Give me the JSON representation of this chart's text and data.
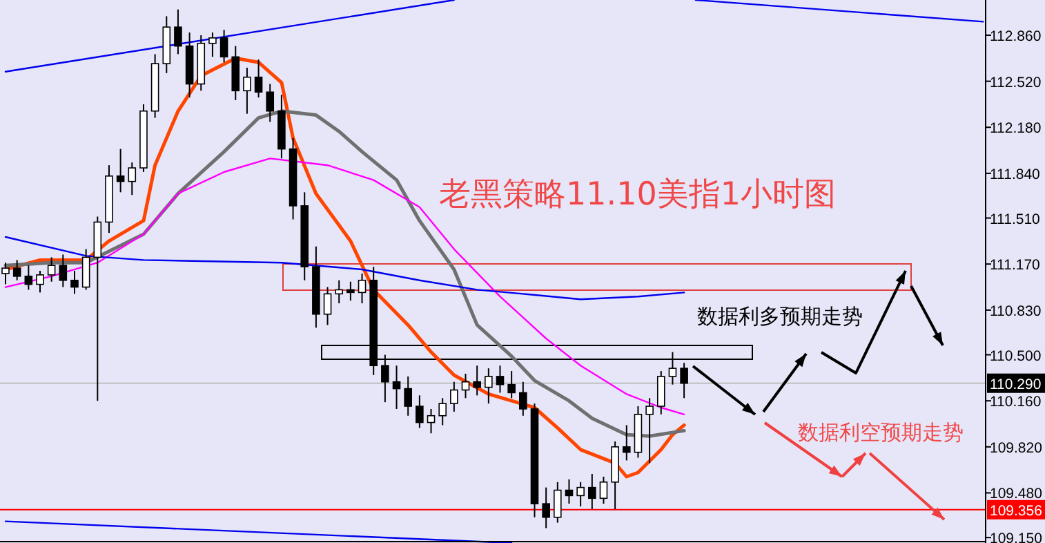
{
  "chart_data": {
    "type": "candlestick",
    "title": "老黑策略11.10美指1小时图",
    "annotations": [
      "数据利多预期走势",
      "数据利空预期走势"
    ],
    "categories": [
      null,
      null,
      null,
      null,
      null,
      null,
      null,
      null,
      null,
      null,
      null,
      null,
      null,
      null,
      null,
      null,
      null,
      null,
      null,
      null,
      null,
      null,
      null,
      null,
      null,
      null,
      null,
      null,
      null,
      null,
      null,
      null,
      null,
      null,
      null,
      null,
      null,
      null,
      null,
      null,
      null,
      null,
      null,
      null,
      null,
      null,
      null,
      null,
      null,
      null,
      null,
      null,
      null,
      null,
      null,
      null,
      null,
      null,
      null,
      null,
      null,
      null,
      null,
      null,
      null,
      null,
      null,
      null,
      null,
      null,
      null,
      null,
      null,
      null,
      null,
      null,
      null,
      null,
      null,
      null,
      null,
      null,
      null,
      null,
      null,
      null
    ],
    "ohlc": [
      [
        111.1,
        111.18,
        111.02,
        111.14
      ],
      [
        111.14,
        111.2,
        111.05,
        111.08
      ],
      [
        111.08,
        111.16,
        110.98,
        111.02
      ],
      [
        111.02,
        111.12,
        110.96,
        111.09
      ],
      [
        111.09,
        111.22,
        111.04,
        111.16
      ],
      [
        111.16,
        111.24,
        111.0,
        111.05
      ],
      [
        111.05,
        111.12,
        110.95,
        111.0
      ],
      [
        111.0,
        111.28,
        110.98,
        111.22
      ],
      [
        111.22,
        111.52,
        110.16,
        111.48
      ],
      [
        111.48,
        111.9,
        111.4,
        111.82
      ],
      [
        111.82,
        112.02,
        111.7,
        111.78
      ],
      [
        111.78,
        111.92,
        111.68,
        111.88
      ],
      [
        111.88,
        112.35,
        111.85,
        112.3
      ],
      [
        112.3,
        112.72,
        112.25,
        112.65
      ],
      [
        112.65,
        113.0,
        112.58,
        112.92
      ],
      [
        112.92,
        113.05,
        112.72,
        112.78
      ],
      [
        112.78,
        112.88,
        112.4,
        112.5
      ],
      [
        112.5,
        112.86,
        112.45,
        112.8
      ],
      [
        112.8,
        112.88,
        112.7,
        112.84
      ],
      [
        112.84,
        112.9,
        112.66,
        112.7
      ],
      [
        112.7,
        112.78,
        112.38,
        112.45
      ],
      [
        112.45,
        112.62,
        112.28,
        112.55
      ],
      [
        112.55,
        112.68,
        112.4,
        112.44
      ],
      [
        112.44,
        112.5,
        112.22,
        112.3
      ],
      [
        112.3,
        112.42,
        111.95,
        112.02
      ],
      [
        112.02,
        112.1,
        111.5,
        111.6
      ],
      [
        111.6,
        111.7,
        111.05,
        111.15
      ],
      [
        111.15,
        111.3,
        110.7,
        110.8
      ],
      [
        110.8,
        111.0,
        110.72,
        110.95
      ],
      [
        110.95,
        111.05,
        110.88,
        110.98
      ],
      [
        110.98,
        111.04,
        110.9,
        110.96
      ],
      [
        110.96,
        111.1,
        110.88,
        111.05
      ],
      [
        111.05,
        111.15,
        110.35,
        110.42
      ],
      [
        110.42,
        110.5,
        110.15,
        110.3
      ],
      [
        110.3,
        110.42,
        110.1,
        110.25
      ],
      [
        110.25,
        110.34,
        110.05,
        110.12
      ],
      [
        110.12,
        110.2,
        109.96,
        110.0
      ],
      [
        110.0,
        110.1,
        109.92,
        110.05
      ],
      [
        110.05,
        110.18,
        109.98,
        110.14
      ],
      [
        110.14,
        110.3,
        110.08,
        110.24
      ],
      [
        110.24,
        110.36,
        110.18,
        110.3
      ],
      [
        110.3,
        110.42,
        110.2,
        110.26
      ],
      [
        110.26,
        110.4,
        110.14,
        110.34
      ],
      [
        110.34,
        110.42,
        110.22,
        110.28
      ],
      [
        110.28,
        110.38,
        110.18,
        110.22
      ],
      [
        110.22,
        110.3,
        110.05,
        110.1
      ],
      [
        110.1,
        110.14,
        109.3,
        109.4
      ],
      [
        109.4,
        109.52,
        109.22,
        109.3
      ],
      [
        109.3,
        109.56,
        109.26,
        109.5
      ],
      [
        109.5,
        109.58,
        109.4,
        109.46
      ],
      [
        109.46,
        109.56,
        109.38,
        109.52
      ],
      [
        109.52,
        109.62,
        109.36,
        109.44
      ],
      [
        109.44,
        109.6,
        109.4,
        109.56
      ],
      [
        109.56,
        109.86,
        109.36,
        109.82
      ],
      [
        109.82,
        109.98,
        109.72,
        109.78
      ],
      [
        109.78,
        110.12,
        109.74,
        110.06
      ],
      [
        110.06,
        110.18,
        109.7,
        110.12
      ],
      [
        110.12,
        110.38,
        110.06,
        110.34
      ],
      [
        110.34,
        110.52,
        110.28,
        110.4
      ],
      [
        110.4,
        110.44,
        110.18,
        110.29
      ],
      null,
      null,
      null,
      null,
      null,
      null,
      null,
      null,
      null,
      null,
      null,
      null,
      null,
      null,
      null,
      null,
      null,
      null,
      null,
      null,
      null,
      null,
      null,
      null,
      null,
      null
    ],
    "series": [
      {
        "type": "line",
        "color": "#ff4500",
        "values": [
          111.13,
          null,
          null,
          111.2,
          null,
          null,
          null,
          111.2,
          null,
          111.34,
          null,
          null,
          111.49,
          111.9,
          null,
          112.3,
          null,
          112.56,
          null,
          null,
          112.69,
          null,
          112.66,
          null,
          112.51,
          112.1,
          null,
          111.69,
          null,
          null,
          111.34,
          null,
          110.98,
          null,
          null,
          110.72,
          null,
          110.52,
          null,
          110.35,
          null,
          null,
          110.21,
          null,
          110.16,
          null,
          110.11,
          null,
          109.96,
          null,
          109.8,
          null,
          null,
          109.7,
          109.6,
          109.63,
          null,
          109.8,
          109.91,
          109.98,
          null,
          null,
          null,
          null,
          null,
          null,
          null,
          null,
          null,
          null,
          null,
          null,
          null,
          null,
          null,
          null,
          null,
          null,
          null,
          null,
          null,
          null,
          null,
          null,
          null,
          null
        ]
      },
      {
        "type": "line",
        "color": "#707070",
        "values": [
          111.16,
          null,
          null,
          null,
          111.18,
          null,
          null,
          111.18,
          null,
          null,
          null,
          null,
          111.39,
          null,
          null,
          111.69,
          null,
          null,
          null,
          112.0,
          null,
          null,
          112.25,
          null,
          112.3,
          null,
          null,
          112.27,
          null,
          112.15,
          null,
          112.0,
          null,
          null,
          111.79,
          null,
          111.49,
          null,
          null,
          111.13,
          null,
          110.72,
          null,
          null,
          110.49,
          null,
          110.31,
          null,
          null,
          110.16,
          null,
          110.03,
          null,
          null,
          109.91,
          null,
          109.9,
          null,
          null,
          109.94,
          null,
          null,
          null,
          null,
          null,
          null,
          null,
          null,
          null,
          null,
          null,
          null,
          null,
          null,
          null,
          null,
          null,
          null,
          null,
          null,
          null,
          null,
          null,
          null,
          null,
          null
        ]
      },
      {
        "type": "line",
        "color": "#ff00ff",
        "values": [
          111.0,
          null,
          null,
          null,
          111.08,
          null,
          null,
          null,
          111.18,
          null,
          null,
          null,
          111.39,
          null,
          null,
          111.69,
          null,
          null,
          null,
          111.85,
          null,
          null,
          null,
          111.95,
          null,
          111.93,
          null,
          null,
          111.9,
          null,
          null,
          null,
          111.79,
          null,
          null,
          null,
          111.59,
          null,
          null,
          111.28,
          null,
          null,
          null,
          110.93,
          null,
          null,
          null,
          110.62,
          null,
          null,
          110.42,
          null,
          null,
          null,
          110.21,
          null,
          null,
          110.11,
          null,
          110.06,
          null,
          null,
          null,
          null,
          null,
          null,
          null,
          null,
          null,
          null,
          null,
          null,
          null,
          null,
          null,
          null,
          null,
          null,
          null,
          null,
          null,
          null,
          null,
          null,
          null,
          null
        ]
      },
      {
        "type": "line",
        "color": "#0000ee",
        "values": [
          111.37,
          null,
          null,
          null,
          null,
          null,
          null,
          111.23,
          null,
          null,
          null,
          null,
          111.2,
          null,
          null,
          null,
          null,
          null,
          null,
          null,
          null,
          null,
          null,
          null,
          111.18,
          null,
          null,
          null,
          null,
          null,
          null,
          111.13,
          null,
          null,
          null,
          null,
          111.05,
          null,
          null,
          null,
          null,
          110.98,
          null,
          null,
          null,
          110.95,
          null,
          null,
          null,
          null,
          110.91,
          null,
          null,
          null,
          null,
          110.93,
          null,
          null,
          null,
          110.96,
          null,
          null,
          null,
          null,
          null,
          null,
          null,
          null,
          null,
          null,
          null,
          null,
          null,
          null,
          null,
          null,
          null,
          null,
          null,
          null,
          null,
          null,
          null,
          null,
          null,
          null
        ]
      },
      {
        "type": "line",
        "color": "#0000ee",
        "values": [
          112.59,
          null,
          null,
          null,
          null,
          null,
          null,
          null,
          null,
          null,
          null,
          null,
          null,
          null,
          null,
          null,
          null,
          null,
          null,
          null,
          null,
          null,
          null,
          null,
          null,
          null,
          null,
          null,
          null,
          null,
          null,
          null,
          null,
          null,
          null,
          null,
          null,
          null,
          null,
          113.12,
          null,
          null,
          null,
          null,
          null,
          null,
          null,
          null,
          null,
          null,
          null,
          null,
          null,
          null,
          null,
          null,
          null,
          null,
          null,
          null,
          null,
          null,
          null,
          null,
          null,
          null,
          null,
          null,
          null,
          null,
          null,
          null,
          null,
          null,
          null,
          null,
          null,
          null,
          null,
          null,
          null,
          null,
          null,
          null,
          null,
          null
        ]
      },
      {
        "type": "line",
        "color": "#0000ee",
        "values": [
          null,
          null,
          null,
          null,
          null,
          null,
          null,
          null,
          null,
          null,
          null,
          null,
          null,
          null,
          null,
          null,
          null,
          null,
          null,
          null,
          null,
          null,
          null,
          null,
          null,
          null,
          null,
          null,
          null,
          null,
          null,
          null,
          null,
          null,
          null,
          null,
          null,
          null,
          null,
          null,
          null,
          null,
          null,
          null,
          null,
          null,
          null,
          null,
          null,
          null,
          null,
          null,
          null,
          null,
          null,
          null,
          null,
          null,
          null,
          null,
          113.12,
          null,
          null,
          null,
          null,
          null,
          null,
          null,
          null,
          null,
          null,
          null,
          null,
          null,
          null,
          null,
          null,
          null,
          null,
          null,
          null,
          null,
          null,
          null,
          null,
          112.96
        ]
      },
      {
        "type": "line",
        "color": "#0000ee",
        "values": [
          109.27,
          null,
          null,
          null,
          null,
          null,
          null,
          null,
          null,
          null,
          null,
          null,
          null,
          null,
          null,
          null,
          null,
          null,
          null,
          null,
          null,
          null,
          null,
          null,
          null,
          null,
          null,
          null,
          null,
          null,
          null,
          null,
          null,
          null,
          null,
          null,
          null,
          null,
          null,
          null,
          null,
          null,
          null,
          null,
          109.11,
          null,
          null,
          null,
          null,
          null,
          null,
          null,
          null,
          null,
          null,
          null,
          null,
          null,
          null,
          null,
          null,
          null,
          null,
          null,
          null,
          null,
          null,
          null,
          null,
          null,
          null,
          null,
          null,
          null,
          null,
          null,
          null,
          null,
          null,
          null,
          null,
          null,
          null,
          null,
          null,
          null
        ]
      }
    ],
    "ref_lines": [
      {
        "axis": "y",
        "value": 110.29,
        "label": "110.290",
        "color": "#c0c0c0"
      },
      {
        "axis": "y",
        "value": 109.356,
        "label": "109.356",
        "color": "#ff0000"
      }
    ],
    "ylim": [
      109.11,
      113.12
    ],
    "yticks": [
      {
        "value": 112.86,
        "label": "112.860"
      },
      {
        "value": 112.52,
        "label": "112.520"
      },
      {
        "value": 112.18,
        "label": "112.180"
      },
      {
        "value": 111.84,
        "label": "111.840"
      },
      {
        "value": 111.51,
        "label": "111.510"
      },
      {
        "value": 111.17,
        "label": "111.170"
      },
      {
        "value": 110.83,
        "label": "110.830"
      },
      {
        "value": 110.5,
        "label": "110.500"
      },
      {
        "value": 110.16,
        "label": "110.160"
      },
      {
        "value": 109.82,
        "label": "109.820"
      },
      {
        "value": 109.48,
        "label": "109.480"
      },
      {
        "value": 109.15,
        "label": "109.150"
      }
    ],
    "tick_labels": "y"
  }
}
